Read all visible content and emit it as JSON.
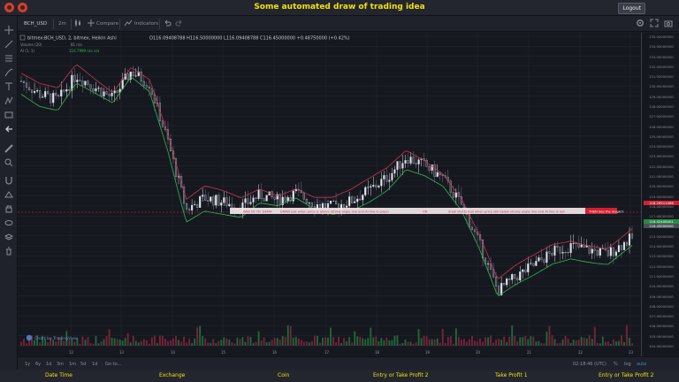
{
  "header": {
    "title": "Some automated draw of trading idea",
    "logout_label": "Logout"
  },
  "toolbar": {
    "symbol": "BCH_USD",
    "interval": "2m",
    "compare_label": "Compare",
    "indicators_label": "Indicators"
  },
  "legend": {
    "main": "bitmex:BCH_USD, 2, bitmex, Heikin Ashi",
    "ohlc": "O116.09408788  H116.50000000  L116.09408788  C116.45000000  +0.48750000 (+0.42%)",
    "volume": "Volume (20)",
    "volume_vals": "81   n/a",
    "ai": "AI (1, 1)",
    "ai_vals": "116.7999   n/a   n/a"
  },
  "price_axis": {
    "ticks": [
      "135.00000000",
      "134.00000000",
      "133.00000000",
      "132.00000000",
      "131.00000000",
      "130.00000000",
      "129.00000000",
      "128.00000000",
      "127.00000000",
      "126.00000000",
      "125.00000000",
      "124.00000000",
      "123.00000000",
      "122.00000000",
      "121.00000000",
      "120.00000000",
      "119.00000000",
      "118.00000000",
      "117.00000000",
      "116.00000000",
      "115.00000000",
      "114.00000000",
      "113.00000000",
      "112.00000000",
      "111.00000000",
      "110.00000000",
      "109.00000000",
      "108.00000000",
      "107.00000000",
      "106.00000000",
      "105.00000000",
      "104.00000000"
    ],
    "badge_red": "118.29511466",
    "badge_green": "116.42408401",
    "badge_gray": "116.45000000"
  },
  "time_axis": [
    "12",
    "13",
    "14",
    "15",
    "16",
    "17",
    "18",
    "19",
    "20",
    "21",
    "22",
    "23"
  ],
  "annotations": {
    "wait": "Wait till 7hr DEMA",
    "draw1": "DRAW just when  price is above strong angle line and AI line is green",
    "or": "OR",
    "draw2": "draw shorts just when price still below strong angle line and AI line is red",
    "magic": "THEN See the magic!!"
  },
  "watermark": "Chart by TradingView",
  "bottom": {
    "ranges": [
      "1y",
      "6y",
      "1d",
      "3m",
      "1m",
      "5d",
      "1d"
    ],
    "goto": "Go to...",
    "time": "02:18:46 (UTC)",
    "pct": "%",
    "log": "log",
    "auto": "auto"
  },
  "footer": {
    "labels": [
      "Date Time",
      "Exchange",
      "Coin",
      "Entry or Take Profit 2",
      "Take Profit 1",
      "Entry or Take Profit 2"
    ]
  },
  "colors": {
    "accent": "#f3e10c",
    "bull": "#2fb84f",
    "bear": "#c8354f",
    "signal_red": "#e02b35"
  },
  "chart_data": {
    "type": "line",
    "price": {
      "x": [
        0,
        3,
        6,
        9,
        12,
        15,
        18,
        21,
        24,
        27,
        30,
        33,
        36,
        39,
        42,
        45,
        48,
        51,
        54,
        57,
        60,
        63,
        66,
        69,
        72,
        75,
        78,
        81,
        84,
        87,
        90,
        93,
        96,
        100
      ],
      "y": [
        130.5,
        129.2,
        128.6,
        131.1,
        129.9,
        128.8,
        131.5,
        130.2,
        124.5,
        117.6,
        118.8,
        118.4,
        117.9,
        119.1,
        118.6,
        119.3,
        118.2,
        117.9,
        118.5,
        119.6,
        120.9,
        122.9,
        122.1,
        120.8,
        118.2,
        114.2,
        109.5,
        110.9,
        112.1,
        113.4,
        114.0,
        113.6,
        113.2,
        114.8
      ]
    },
    "ylim": [
      104,
      135
    ],
    "x_ticks": [
      "12",
      "13",
      "14",
      "15",
      "16",
      "17",
      "18",
      "19",
      "20",
      "21",
      "22",
      "23"
    ]
  }
}
